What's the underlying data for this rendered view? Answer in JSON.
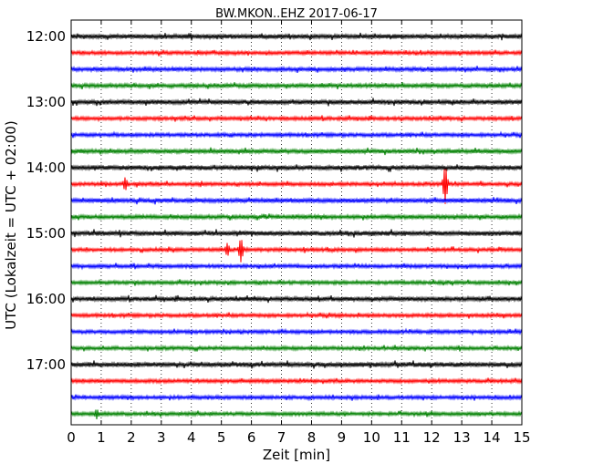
{
  "chart_data": {
    "type": "line",
    "title": "BW.MKON..EHZ 2017-06-17",
    "xlabel": "Zeit  [min]",
    "ylabel": "UTC (Lokalzeit = UTC + 02:00)",
    "xlim": [
      0,
      15
    ],
    "x_ticks": [
      0,
      1,
      2,
      3,
      4,
      5,
      6,
      7,
      8,
      9,
      10,
      11,
      12,
      13,
      14,
      15
    ],
    "y_ticks": [
      "12:00",
      "13:00",
      "14:00",
      "15:00",
      "16:00",
      "17:00"
    ],
    "grid": "vertical dotted at each minute",
    "trace_interval_min": 15,
    "colors_cycle": [
      "#000000",
      "#ff0000",
      "#0000ff",
      "#008000"
    ],
    "traces": [
      {
        "start_utc": "12:00",
        "color": "#000000",
        "noise": 2.5
      },
      {
        "start_utc": "12:15",
        "color": "#ff0000",
        "noise": 2.0
      },
      {
        "start_utc": "12:30",
        "color": "#0000ff",
        "noise": 2.2
      },
      {
        "start_utc": "12:45",
        "color": "#008000",
        "noise": 2.2
      },
      {
        "start_utc": "13:00",
        "color": "#000000",
        "noise": 2.5
      },
      {
        "start_utc": "13:15",
        "color": "#ff0000",
        "noise": 2.0
      },
      {
        "start_utc": "13:30",
        "color": "#0000ff",
        "noise": 2.0
      },
      {
        "start_utc": "13:45",
        "color": "#008000",
        "noise": 2.4
      },
      {
        "start_utc": "14:00",
        "color": "#000000",
        "noise": 2.6
      },
      {
        "start_utc": "14:15",
        "color": "#ff0000",
        "noise": 2.0,
        "events": [
          {
            "t": 1.8,
            "amp": 8
          },
          {
            "t": 12.45,
            "amp": 22
          }
        ]
      },
      {
        "start_utc": "14:30",
        "color": "#0000ff",
        "noise": 2.4
      },
      {
        "start_utc": "14:45",
        "color": "#008000",
        "noise": 2.2
      },
      {
        "start_utc": "15:00",
        "color": "#000000",
        "noise": 2.6
      },
      {
        "start_utc": "15:15",
        "color": "#ff0000",
        "noise": 2.0,
        "events": [
          {
            "t": 5.2,
            "amp": 8
          },
          {
            "t": 5.65,
            "amp": 14
          }
        ]
      },
      {
        "start_utc": "15:30",
        "color": "#0000ff",
        "noise": 2.0
      },
      {
        "start_utc": "15:45",
        "color": "#008000",
        "noise": 2.0
      },
      {
        "start_utc": "16:00",
        "color": "#000000",
        "noise": 2.4
      },
      {
        "start_utc": "16:15",
        "color": "#ff0000",
        "noise": 2.0
      },
      {
        "start_utc": "16:30",
        "color": "#0000ff",
        "noise": 2.0
      },
      {
        "start_utc": "16:45",
        "color": "#008000",
        "noise": 2.0
      },
      {
        "start_utc": "17:00",
        "color": "#000000",
        "noise": 2.6
      },
      {
        "start_utc": "17:15",
        "color": "#ff0000",
        "noise": 2.0
      },
      {
        "start_utc": "17:30",
        "color": "#0000ff",
        "noise": 2.0
      },
      {
        "start_utc": "17:45",
        "color": "#008000",
        "noise": 2.0,
        "events": [
          {
            "t": 0.85,
            "amp": 6
          }
        ]
      }
    ]
  }
}
